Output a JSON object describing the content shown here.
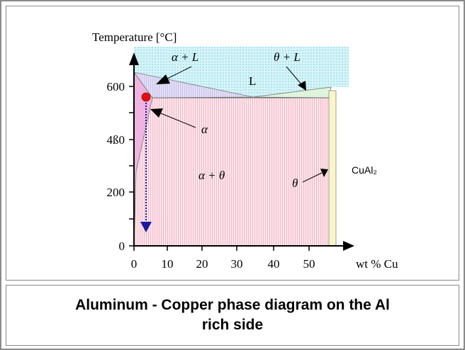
{
  "diagram": {
    "y_axis_label": "Temperature  [°C]",
    "x_axis_label": "wt % Cu",
    "y_tick_labels": [
      "0",
      "200",
      "4ß0",
      "600"
    ],
    "x_tick_labels": [
      "0",
      "10",
      "20",
      "30",
      "40",
      "50"
    ],
    "regions": {
      "alpha_plus_liquid": "α + L",
      "theta_plus_liquid": "θ + L",
      "liquid": "L",
      "alpha": "α",
      "alpha_plus_theta": "α + θ",
      "theta": "θ",
      "compound": "CuAl₂"
    }
  },
  "caption": "Aluminum - Copper phase diagram on the Al rich side"
}
